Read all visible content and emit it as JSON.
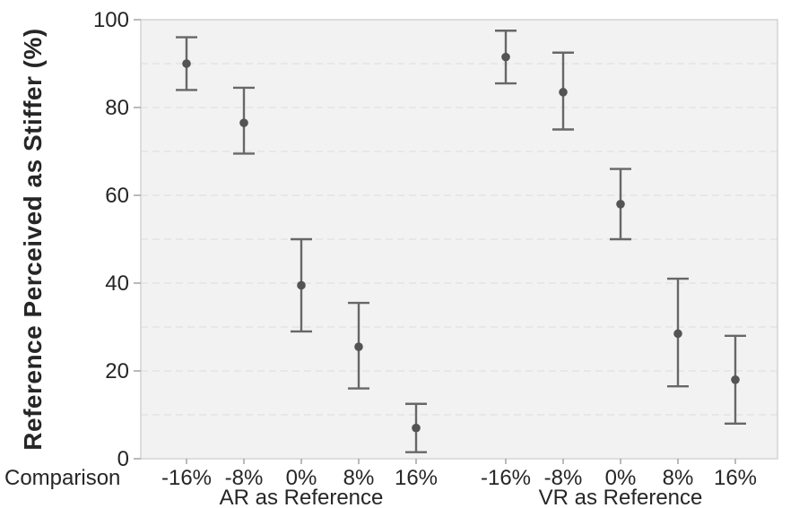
{
  "chart_data": {
    "type": "scatter",
    "subtype": "point-with-error-bars",
    "title": "",
    "ylabel": "Reference Perceived as Stiffer (%)",
    "corner_label": "Comparison",
    "ylim": [
      0,
      100
    ],
    "yticks": [
      0,
      20,
      40,
      60,
      80,
      100
    ],
    "grid": {
      "horizontal_dashed_every": 10,
      "visible": true
    },
    "legend": "none",
    "categories": [
      "-16%",
      "-8%",
      "0%",
      "8%",
      "16%"
    ],
    "groups": [
      {
        "label": "AR as Reference",
        "points": [
          {
            "x": "-16%",
            "y": 90,
            "lo": 84,
            "hi": 96
          },
          {
            "x": "-8%",
            "y": 76.5,
            "lo": 69.5,
            "hi": 84.5
          },
          {
            "x": "0%",
            "y": 39.5,
            "lo": 29,
            "hi": 50
          },
          {
            "x": "8%",
            "y": 25.5,
            "lo": 16,
            "hi": 35.5
          },
          {
            "x": "16%",
            "y": 7,
            "lo": 1.5,
            "hi": 12.5
          }
        ]
      },
      {
        "label": "VR as Reference",
        "points": [
          {
            "x": "-16%",
            "y": 91.5,
            "lo": 85.5,
            "hi": 97.5
          },
          {
            "x": "-8%",
            "y": 83.5,
            "lo": 75,
            "hi": 92.5
          },
          {
            "x": "0%",
            "y": 58,
            "lo": 50,
            "hi": 66
          },
          {
            "x": "8%",
            "y": 28.5,
            "lo": 16.5,
            "hi": 41
          },
          {
            "x": "16%",
            "y": 18,
            "lo": 8,
            "hi": 28
          }
        ]
      }
    ],
    "colors": {
      "marker": "#545454",
      "error_bar": "#676767",
      "plot_background": "#f2f2f2",
      "grid_line": "#e3e3e3",
      "plot_border": "#d6d6d6",
      "tick_mark": "#a8a8a8",
      "text": "#262626",
      "page_background": "#ffffff"
    }
  }
}
